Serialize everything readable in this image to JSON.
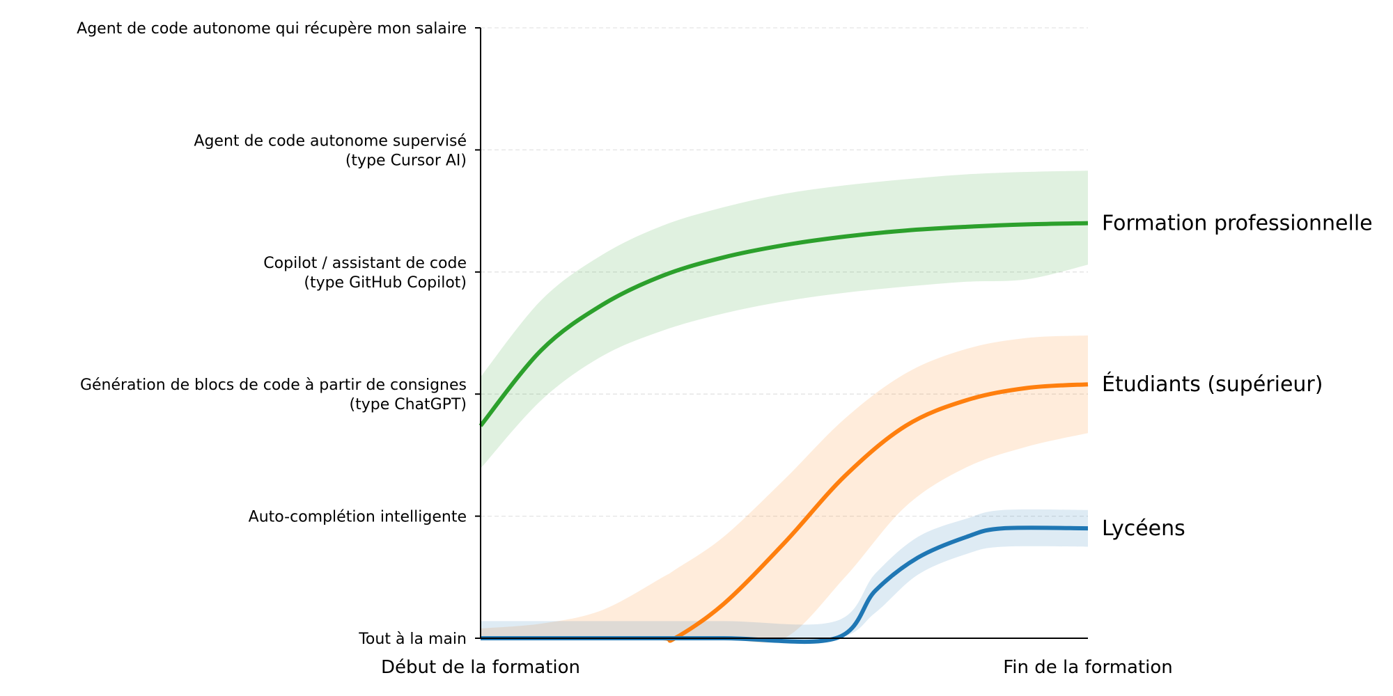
{
  "chart_data": {
    "type": "line",
    "title": "",
    "xlabel": "",
    "ylabel": "",
    "x_ticks": [
      "Début de la formation",
      "Fin de la formation"
    ],
    "xlim": [
      0,
      1
    ],
    "ylim": [
      0,
      5
    ],
    "y_ticks": [
      {
        "value": 0,
        "lines": [
          "Tout à la main"
        ]
      },
      {
        "value": 1,
        "lines": [
          "Auto-complétion intelligente"
        ]
      },
      {
        "value": 2,
        "lines": [
          "Génération de blocs de code à partir de consignes",
          "(type ChatGPT)"
        ]
      },
      {
        "value": 3,
        "lines": [
          "Copilot / assistant de code",
          "(type GitHub Copilot)"
        ]
      },
      {
        "value": 4,
        "lines": [
          "Agent de code autonome supervisé",
          "(type Cursor AI)"
        ]
      },
      {
        "value": 5,
        "lines": [
          "Agent de code autonome qui récupère mon salaire"
        ]
      }
    ],
    "grid": "horizontal dashed",
    "series": [
      {
        "name": "Formation professionnelle",
        "color": "#2ca02c",
        "band_color": "#2ca02c",
        "x": [
          0,
          0.1,
          0.2,
          0.3,
          0.4,
          0.5,
          0.6,
          0.7,
          0.8,
          0.9,
          1.0
        ],
        "y": [
          1.74,
          2.36,
          2.73,
          2.97,
          3.12,
          3.22,
          3.29,
          3.34,
          3.37,
          3.39,
          3.4
        ],
        "lower": [
          1.39,
          1.95,
          2.31,
          2.52,
          2.66,
          2.76,
          2.83,
          2.88,
          2.92,
          2.94,
          3.06
        ],
        "upper": [
          2.14,
          2.77,
          3.14,
          3.38,
          3.53,
          3.64,
          3.71,
          3.76,
          3.8,
          3.82,
          3.83
        ]
      },
      {
        "name": "Étudiants (supérieur)",
        "color": "#ff7f0e",
        "band_color": "#ff7f0e",
        "x": [
          0,
          0.1,
          0.2,
          0.3,
          0.32,
          0.4,
          0.5,
          0.6,
          0.7,
          0.8,
          0.9,
          1.0
        ],
        "y": [
          0,
          0,
          0,
          0,
          0,
          0.28,
          0.78,
          1.33,
          1.74,
          1.95,
          2.05,
          2.08
        ],
        "lower": [
          0,
          0,
          0,
          0,
          0,
          0,
          0,
          0.5,
          1.08,
          1.4,
          1.57,
          1.68
        ],
        "upper": [
          0.08,
          0.12,
          0.23,
          0.5,
          0.56,
          0.83,
          1.3,
          1.8,
          2.17,
          2.37,
          2.46,
          2.48
        ]
      },
      {
        "name": "Lycéens",
        "color": "#1f77b4",
        "band_color": "#1f77b4",
        "x": [
          0,
          0.2,
          0.4,
          0.585,
          0.65,
          0.72,
          0.8,
          0.86,
          1.0
        ],
        "y": [
          0,
          0,
          0,
          0,
          0.39,
          0.66,
          0.83,
          0.9,
          0.9
        ],
        "lower": [
          0,
          0,
          0,
          0,
          0.21,
          0.52,
          0.69,
          0.75,
          0.75
        ],
        "upper": [
          0.14,
          0.14,
          0.14,
          0.14,
          0.53,
          0.83,
          0.98,
          1.05,
          1.05
        ]
      }
    ]
  }
}
